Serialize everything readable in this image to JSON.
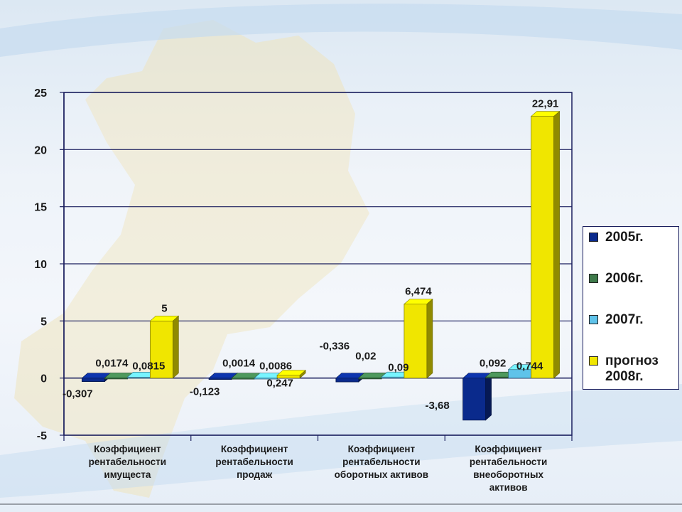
{
  "chart_data": {
    "type": "bar",
    "categories": [
      [
        "Коэффициент",
        "рентабельности",
        "имущеста"
      ],
      [
        "Коэффициент",
        "рентабельности",
        "продаж"
      ],
      [
        "Коэффициент",
        "рентабельности",
        "оборотных активов"
      ],
      [
        "Коэффициент",
        "рентабельности",
        "внеоборотных",
        "активов"
      ]
    ],
    "series": [
      {
        "name": "2005г.",
        "color": "#0a2a8c",
        "values": [
          -0.307,
          -0.123,
          -0.336,
          -3.68
        ],
        "labels": [
          "-0,307",
          "-0,123",
          "-0,336",
          "-3,68"
        ]
      },
      {
        "name": "2006г.",
        "color": "#3e7a4a",
        "values": [
          0.0174,
          0.0014,
          0.02,
          0.092
        ],
        "labels": [
          "0,0174",
          "0,0014",
          "0,02",
          "0,092"
        ]
      },
      {
        "name": "2007г.",
        "color": "#5fc3ea",
        "values": [
          0.0815,
          0.0086,
          0.09,
          0.744
        ],
        "labels": [
          "0,0815",
          "0,0086",
          "0,09",
          "0,744"
        ]
      },
      {
        "name": "прогноз 2008г.",
        "color": "#f0e600",
        "values": [
          5,
          0.247,
          6.474,
          22.91
        ],
        "labels": [
          "5",
          "0,247",
          "6,474",
          "22,91"
        ]
      }
    ],
    "ylim": [
      -5,
      25
    ],
    "yticks": [
      "-5",
      "0",
      "5",
      "10",
      "15",
      "20",
      "25"
    ],
    "grid": true,
    "legend": "right",
    "title": "",
    "xlabel": "",
    "ylabel": ""
  },
  "legend": {
    "items": [
      {
        "label": "2005г.",
        "color": "#0a2a8c"
      },
      {
        "label": "2006г.",
        "color": "#3e7a4a"
      },
      {
        "label": "2007г.",
        "color": "#5fc3ea"
      },
      {
        "label": "прогноз 2008г.",
        "color": "#f0e600"
      }
    ]
  }
}
